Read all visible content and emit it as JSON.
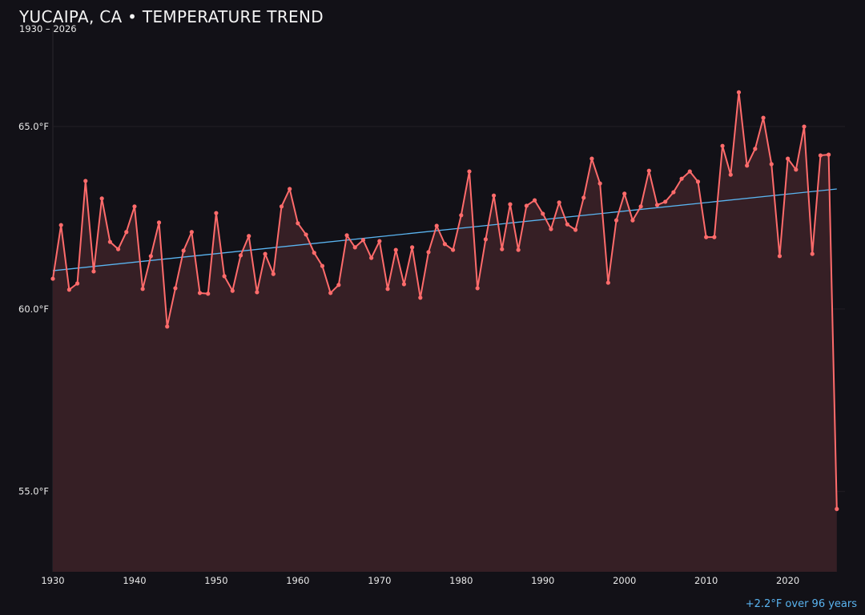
{
  "header": {
    "title": "YUCAIPA, CA • TEMPERATURE TREND",
    "subtitle": "1930 – 2026"
  },
  "footer": {
    "trend_note": "+2.2°F over 96 years"
  },
  "colors": {
    "background": "#121117",
    "series": "#ff6b6b",
    "area_fill": "#361f25",
    "trend": "#5ab4f0",
    "grid": "#221e24"
  },
  "chart_data": {
    "type": "area",
    "title": "YUCAIPA, CA • TEMPERATURE TREND",
    "subtitle": "1930 – 2026",
    "xlabel": "",
    "ylabel": "",
    "xlim": [
      1930,
      2027
    ],
    "ylim": [
      52.8,
      67.7
    ],
    "grid": true,
    "x_ticks": [
      1930,
      1940,
      1950,
      1960,
      1970,
      1980,
      1990,
      2000,
      2010,
      2020
    ],
    "y_ticks": [
      55.0,
      60.0,
      65.0
    ],
    "y_tick_labels": [
      "55.0°F",
      "60.0°F",
      "65.0°F"
    ],
    "x": [
      1930,
      1931,
      1932,
      1933,
      1934,
      1935,
      1936,
      1937,
      1938,
      1939,
      1940,
      1941,
      1942,
      1943,
      1944,
      1945,
      1946,
      1947,
      1948,
      1949,
      1950,
      1951,
      1952,
      1953,
      1954,
      1955,
      1956,
      1957,
      1958,
      1959,
      1960,
      1961,
      1962,
      1963,
      1964,
      1965,
      1966,
      1967,
      1968,
      1969,
      1970,
      1971,
      1972,
      1973,
      1974,
      1975,
      1976,
      1977,
      1978,
      1979,
      1980,
      1981,
      1982,
      1983,
      1984,
      1985,
      1986,
      1987,
      1988,
      1989,
      1990,
      1991,
      1992,
      1993,
      1994,
      1995,
      1996,
      1997,
      1998,
      1999,
      2000,
      2001,
      2002,
      2003,
      2004,
      2005,
      2006,
      2007,
      2008,
      2009,
      2010,
      2011,
      2012,
      2013,
      2014,
      2015,
      2016,
      2017,
      2018,
      2019,
      2020,
      2021,
      2022,
      2023,
      2024,
      2025,
      2026
    ],
    "values": [
      60.83,
      62.3,
      60.53,
      60.7,
      63.51,
      61.03,
      63.03,
      61.84,
      61.64,
      62.11,
      62.81,
      60.55,
      61.45,
      62.37,
      59.52,
      60.57,
      61.6,
      62.11,
      60.44,
      60.42,
      62.63,
      60.9,
      60.5,
      61.47,
      62.0,
      60.46,
      61.51,
      60.96,
      62.81,
      63.29,
      62.35,
      62.04,
      61.54,
      61.18,
      60.44,
      60.66,
      62.02,
      61.69,
      61.89,
      61.4,
      61.86,
      60.55,
      61.62,
      60.68,
      61.69,
      60.31,
      61.56,
      62.28,
      61.78,
      61.62,
      62.57,
      63.77,
      60.57,
      61.91,
      63.11,
      61.64,
      62.87,
      61.62,
      62.83,
      62.98,
      62.61,
      62.19,
      62.92,
      62.32,
      62.17,
      63.05,
      64.12,
      63.44,
      60.72,
      62.43,
      63.16,
      62.43,
      62.81,
      63.79,
      62.85,
      62.94,
      63.2,
      63.57,
      63.77,
      63.49,
      61.97,
      61.97,
      64.47,
      63.68,
      65.94,
      63.93,
      64.39,
      65.24,
      63.97,
      61.45,
      64.12,
      63.82,
      65.0,
      61.51,
      64.21,
      64.23,
      54.52
    ],
    "trend_line": {
      "start": [
        1930,
        61.05
      ],
      "end": [
        2026,
        63.29
      ]
    },
    "units": "°F"
  }
}
